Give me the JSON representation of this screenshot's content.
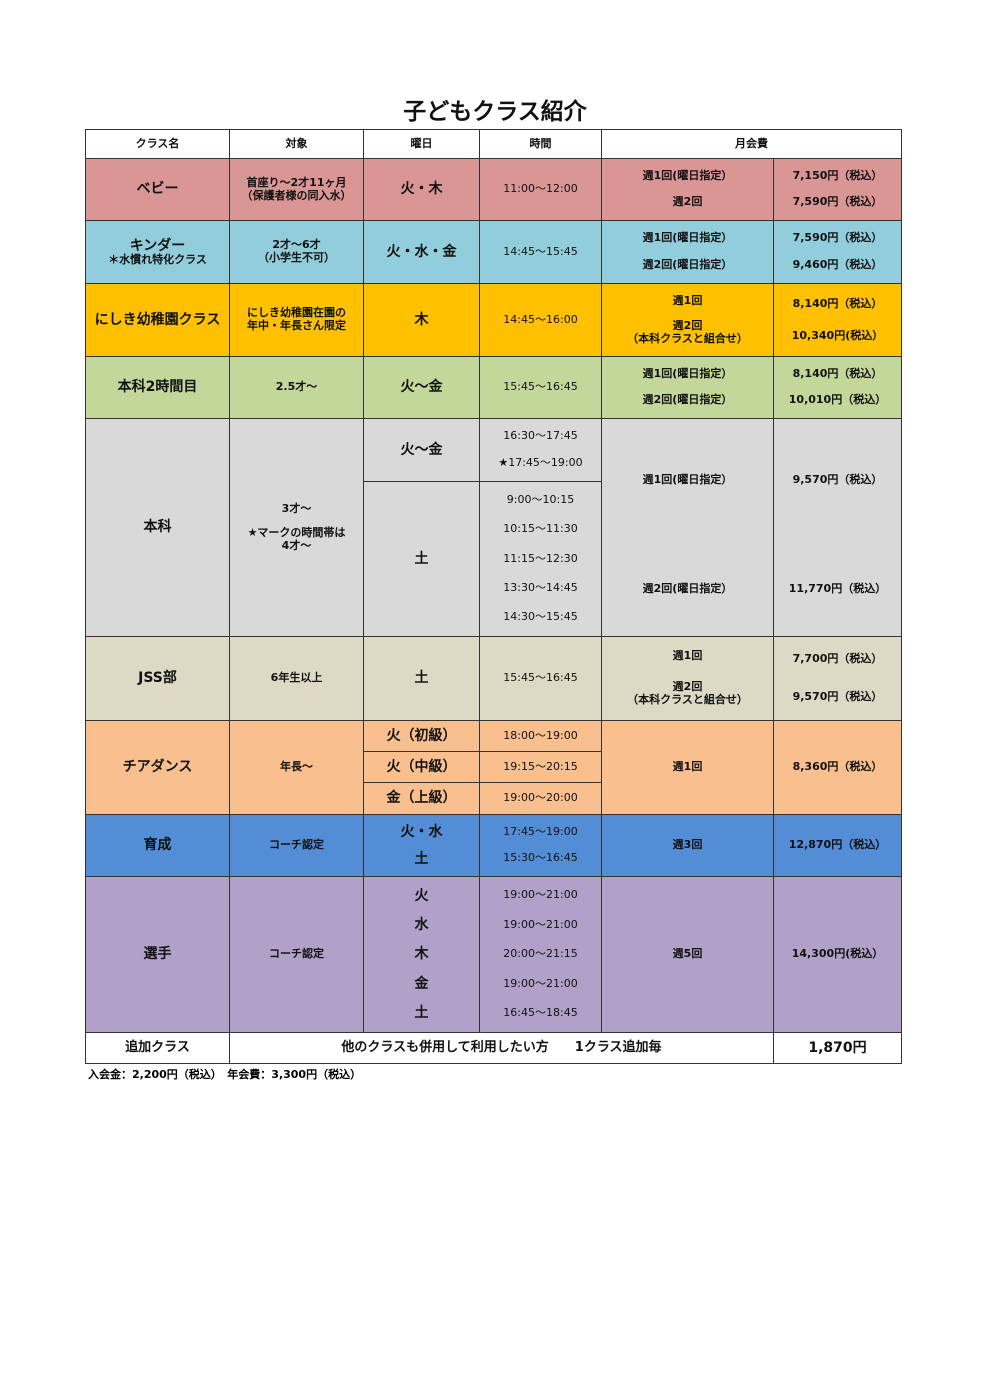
{
  "title": "子どもクラス紹介",
  "headers": [
    "クラス名",
    "対象",
    "曜日",
    "時間",
    "月会費"
  ],
  "colors": {
    "baby": "#da9694",
    "kinder": "#92cddc",
    "nishiki": "#ffc000",
    "honka2": "#c4d79b",
    "honka": "#d9d9d9",
    "jss": "#ddd9c4",
    "cheer": "#fabf8f",
    "ikusei": "#538dd5",
    "senshu": "#b1a0c7"
  },
  "rows": {
    "baby": {
      "name": "ベビー",
      "target": [
        "首座り～2才11ヶ月",
        "（保護者様の同入水）"
      ],
      "day": "火・木",
      "time": "11:00～12:00",
      "plans": [
        "週1回(曜日指定）",
        "週2回"
      ],
      "fees": [
        "7,150円（税込）",
        "7,590円（税込）"
      ]
    },
    "kinder": {
      "name": "キンダー",
      "note": "＊水慣れ特化クラス",
      "target": [
        "2才～6才",
        "（小学生不可）"
      ],
      "day": "火・水・金",
      "time": "14:45～15:45",
      "plans": [
        "週1回(曜日指定）",
        "週2回(曜日指定）"
      ],
      "fees": [
        "7,590円（税込）",
        "9,460円（税込）"
      ]
    },
    "nishiki": {
      "name": "にしき幼稚園クラス",
      "target": [
        "にしき幼稚園在園の",
        "年中・年長さん限定"
      ],
      "day": "木",
      "time": "14:45～16:00",
      "plans": [
        "週1回",
        "週2回",
        "（本科クラスと組合せ）"
      ],
      "fees": [
        "8,140円（税込）",
        "10,340円(税込）"
      ]
    },
    "honka2": {
      "name": "本科2時間目",
      "target": "2.5才～",
      "day": "火～金",
      "time": "15:45～16:45",
      "plans": [
        "週1回(曜日指定）",
        "週2回(曜日指定）"
      ],
      "fees": [
        "8,140円（税込）",
        "10,010円（税込）"
      ]
    },
    "honka": {
      "name": "本科",
      "target": [
        "3才～",
        "★マークの時間帯は",
        "4才～"
      ],
      "days": [
        "火～金",
        "土"
      ],
      "times_weekday": [
        "16:30～17:45",
        "★17:45～19:00"
      ],
      "times_sat": [
        "9:00～10:15",
        "10:15～11:30",
        "11:15～12:30",
        "13:30～14:45",
        "14:30～15:45"
      ],
      "plans": [
        "週1回(曜日指定）",
        "週2回(曜日指定）"
      ],
      "fees": [
        "9,570円（税込）",
        "11,770円（税込）"
      ]
    },
    "jss": {
      "name": "JSS部",
      "target": "6年生以上",
      "day": "土",
      "time": "15:45～16:45",
      "plans": [
        "週1回",
        "週2回",
        "（本科クラスと組合せ）"
      ],
      "fees": [
        "7,700円（税込）",
        "9,570円（税込）"
      ]
    },
    "cheer": {
      "name": "チアダンス",
      "target": "年長～",
      "days": [
        "火（初級）",
        "火（中級）",
        "金（上級）"
      ],
      "times": [
        "18:00～19:00",
        "19:15～20:15",
        "19:00～20:00"
      ],
      "plan": "週1回",
      "fee": "8,360円（税込）"
    },
    "ikusei": {
      "name": "育成",
      "target": "コーチ認定",
      "days": [
        "火・水",
        "土"
      ],
      "times": [
        "17:45～19:00",
        "15:30～16:45"
      ],
      "plan": "週3回",
      "fee": "12,870円（税込）"
    },
    "senshu": {
      "name": "選手",
      "target": "コーチ認定",
      "days": [
        "火",
        "水",
        "木",
        "金",
        "土"
      ],
      "times": [
        "19:00～21:00",
        "19:00～21:00",
        "20:00～21:15",
        "19:00～21:00",
        "16:45～18:45"
      ],
      "plan": "週5回",
      "fee": "14,300円(税込）"
    },
    "extra": {
      "name": "追加クラス",
      "desc": "他のクラスも併用して利用したい方　　1クラス追加毎",
      "fee": "1,870円"
    }
  },
  "footer": "入会金：2,200円（税込）　年会費：3,300円（税込）"
}
